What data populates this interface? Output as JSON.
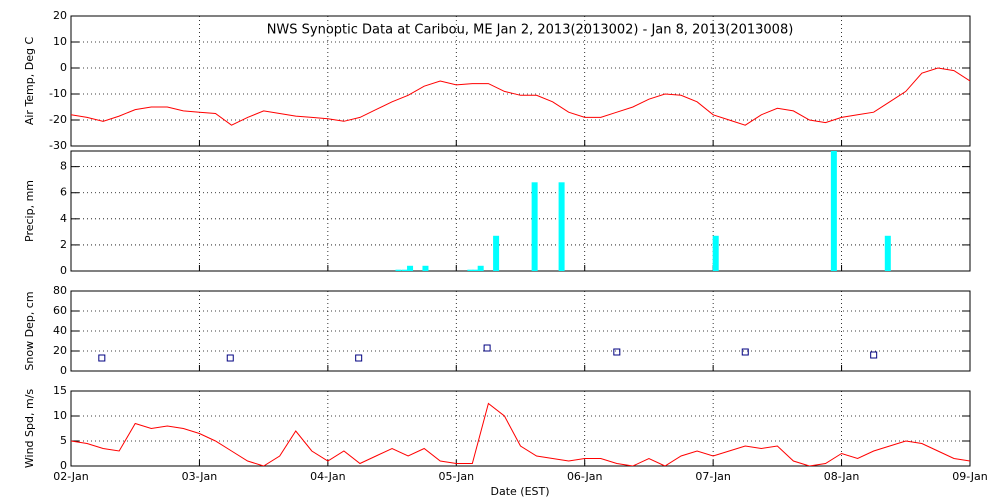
{
  "chart_data": [
    {
      "type": "line",
      "title": "NWS Synoptic Data at Caribou, ME   Jan  2, 2013(2013002) - Jan  8, 2013(2013008)",
      "ylabel": "Air Temp, Deg C",
      "color": "#ff0000",
      "grid": true,
      "xlim": [
        0,
        7
      ],
      "ylim": [
        -30,
        20
      ],
      "yticks": [
        -30,
        -20,
        -10,
        0,
        10,
        20
      ],
      "x": [
        0,
        0.125,
        0.25,
        0.375,
        0.5,
        0.625,
        0.75,
        0.875,
        1,
        1.125,
        1.25,
        1.375,
        1.5,
        1.625,
        1.75,
        1.875,
        2,
        2.125,
        2.25,
        2.375,
        2.5,
        2.625,
        2.75,
        2.875,
        3,
        3.125,
        3.25,
        3.375,
        3.5,
        3.625,
        3.75,
        3.875,
        4,
        4.125,
        4.25,
        4.375,
        4.5,
        4.625,
        4.75,
        4.875,
        5,
        5.125,
        5.25,
        5.375,
        5.5,
        5.625,
        5.75,
        5.875,
        6,
        6.125,
        6.25,
        6.375,
        6.5,
        6.625,
        6.75,
        6.875,
        7
      ],
      "values": [
        -18,
        -19,
        -20.5,
        -18.5,
        -16,
        -15,
        -15,
        -16.5,
        -17,
        -17.5,
        -22,
        -19,
        -16.5,
        -17.5,
        -18.5,
        -19,
        -19.5,
        -20.5,
        -19,
        -16,
        -13,
        -10.5,
        -7,
        -5,
        -6.5,
        -6,
        -6,
        -9,
        -10.5,
        -10.5,
        -13,
        -17,
        -19,
        -19,
        -17,
        -15,
        -12,
        -10,
        -10.5,
        -13,
        -18,
        -20,
        -22,
        -18,
        -15.5,
        -16.5,
        -20,
        -21,
        -19,
        -18,
        -17,
        -13,
        -9,
        -2,
        0,
        -1,
        -5
      ]
    },
    {
      "type": "bar",
      "ylabel": "Precip, mm",
      "color": "#00ffff",
      "grid": true,
      "xlim": [
        0,
        7
      ],
      "ylim": [
        0,
        9.2
      ],
      "yticks": [
        0,
        2,
        4,
        6,
        8
      ],
      "x": [
        2.55,
        2.6,
        2.64,
        2.76,
        3.11,
        3.15,
        3.19,
        3.31,
        3.61,
        3.82,
        5.02,
        5.94,
        6.36
      ],
      "values": [
        0.1,
        0.1,
        0.4,
        0.4,
        0.1,
        0.1,
        0.4,
        2.7,
        6.8,
        6.8,
        2.7,
        9.2,
        2.7
      ]
    },
    {
      "type": "scatter",
      "ylabel": "Snow Dep, cm",
      "color": "#000080",
      "grid": true,
      "xlim": [
        0,
        7
      ],
      "ylim": [
        0,
        80
      ],
      "yticks": [
        0,
        20,
        40,
        60,
        80
      ],
      "x": [
        0.24,
        1.24,
        2.24,
        3.24,
        4.25,
        5.25,
        6.25
      ],
      "values": [
        13,
        13,
        13,
        23,
        19,
        19,
        16
      ]
    },
    {
      "type": "line",
      "ylabel": "Wind Spd, m/s",
      "xlabel": "Date (EST)",
      "color": "#ff0000",
      "grid": true,
      "xlim": [
        0,
        7
      ],
      "ylim": [
        0,
        15
      ],
      "yticks": [
        0,
        5,
        10,
        15
      ],
      "xticks": [
        {
          "value": 0,
          "label": "02-Jan"
        },
        {
          "value": 1,
          "label": "03-Jan"
        },
        {
          "value": 2,
          "label": "04-Jan"
        },
        {
          "value": 3,
          "label": "05-Jan"
        },
        {
          "value": 4,
          "label": "06-Jan"
        },
        {
          "value": 5,
          "label": "07-Jan"
        },
        {
          "value": 6,
          "label": "08-Jan"
        },
        {
          "value": 7,
          "label": "09-Jan"
        }
      ],
      "x": [
        0,
        0.125,
        0.25,
        0.375,
        0.5,
        0.625,
        0.75,
        0.875,
        1,
        1.125,
        1.25,
        1.375,
        1.5,
        1.625,
        1.75,
        1.875,
        2,
        2.125,
        2.25,
        2.375,
        2.5,
        2.625,
        2.75,
        2.875,
        3,
        3.125,
        3.25,
        3.375,
        3.5,
        3.625,
        3.75,
        3.875,
        4,
        4.125,
        4.25,
        4.375,
        4.5,
        4.625,
        4.75,
        4.875,
        5,
        5.125,
        5.25,
        5.375,
        5.5,
        5.625,
        5.75,
        5.875,
        6,
        6.125,
        6.25,
        6.375,
        6.5,
        6.625,
        6.75,
        6.875,
        7
      ],
      "values": [
        5,
        4.5,
        3.5,
        3,
        8.5,
        7.5,
        8,
        7.5,
        6.5,
        5,
        3,
        1,
        0,
        2,
        7,
        3,
        1,
        3,
        0.5,
        2,
        3.5,
        2,
        3.5,
        1,
        0.5,
        0.5,
        12.5,
        10,
        4,
        2,
        1.5,
        1,
        1.5,
        1.5,
        0.5,
        0,
        1.5,
        0,
        2,
        3,
        2,
        3,
        4,
        3.5,
        4,
        1,
        0,
        0.5,
        2.5,
        1.5,
        3,
        4,
        5,
        4.5,
        3,
        1.5,
        1
      ]
    }
  ]
}
